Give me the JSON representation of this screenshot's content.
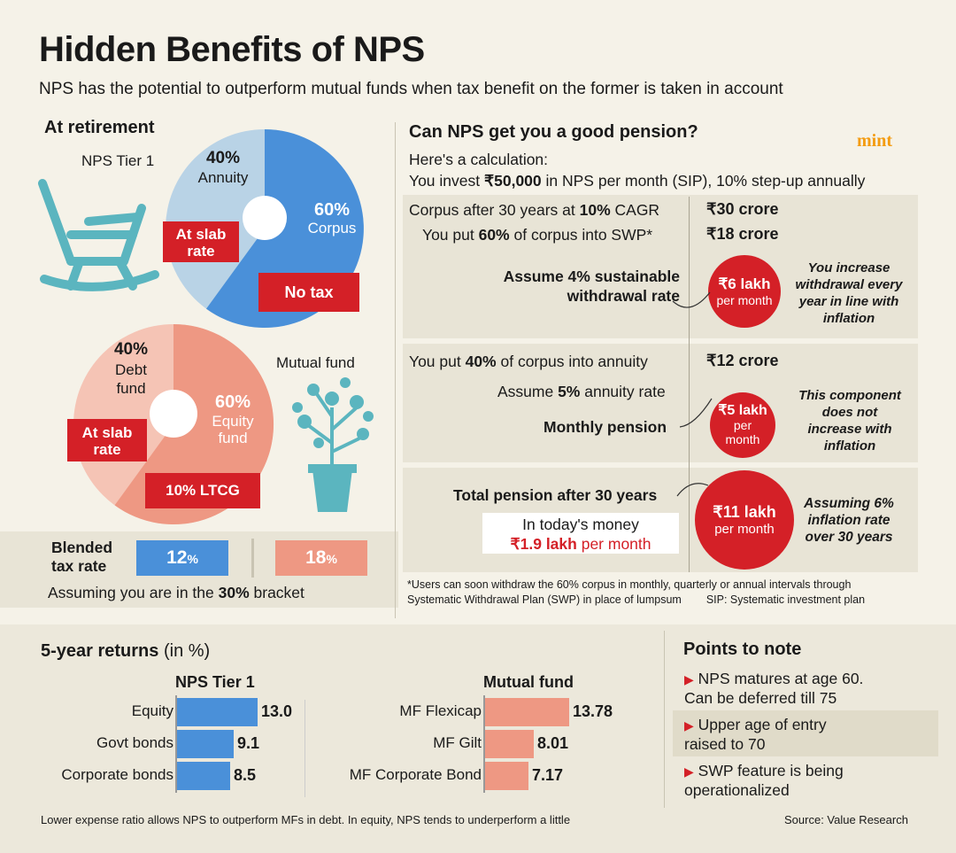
{
  "title": "Hidden Benefits of NPS",
  "subtitle": "NPS has the potential to outperform mutual funds when tax benefit on the former is taken in account",
  "brand": "mint",
  "colors": {
    "red": "#d42027",
    "blue": "#4a90d9",
    "light_blue": "#b9d3e6",
    "salmon": "#ee9883",
    "light_salmon": "#f5c4b5",
    "teal": "#5bb5bf",
    "brand": "#f39c12"
  },
  "left": {
    "heading": "At retirement",
    "nps_label": "NPS Tier 1",
    "nps_annuity_pct": "40%",
    "nps_annuity_label": "Annuity",
    "nps_corpus_pct": "60%",
    "nps_corpus_label": "Corpus",
    "nps_slab": [
      "At slab",
      "rate"
    ],
    "nps_notax": "No tax",
    "mf_label": "Mutual fund",
    "mf_debt_pct": "40%",
    "mf_debt_label": [
      "Debt",
      "fund"
    ],
    "mf_equity_pct": "60%",
    "mf_equity_label": [
      "Equity",
      "fund"
    ],
    "mf_slab": [
      "At slab",
      "rate"
    ],
    "mf_ltcg": "10% LTCG",
    "blended_label": [
      "Blended",
      "tax rate"
    ],
    "blended_nps": "12",
    "blended_mf": "18",
    "pct_sign": "%",
    "bracket_pre": "Assuming you are in the ",
    "bracket_bold": "30%",
    "bracket_post": " bracket"
  },
  "right": {
    "heading": "Can NPS get you a good pension?",
    "intro": "Here's a calculation:",
    "invest_pre": "You invest ",
    "invest_bold": "₹50,000",
    "invest_post": " in NPS per month (SIP), 10% step-up annually",
    "corpus_pre": "Corpus after 30 years at ",
    "corpus_bold": "10%",
    "corpus_post": " CAGR",
    "corpus_val": "₹30 crore",
    "swp_pre": "You put ",
    "swp_bold": "60%",
    "swp_post": " of corpus into SWP*",
    "swp_val": "₹18 crore",
    "withdraw_label": [
      "Assume 4% sustainable",
      "withdrawal rate"
    ],
    "withdraw_circle": [
      "₹6 lakh",
      "per month"
    ],
    "withdraw_note": [
      "You increase",
      "withdrawal every",
      "year in line with",
      "inflation"
    ],
    "annuity_pre": "You put ",
    "annuity_bold": "40%",
    "annuity_post": " of corpus into annuity",
    "annuity_val": "₹12 crore",
    "annuity_rate_pre": "Assume ",
    "annuity_rate_bold": "5%",
    "annuity_rate_post": " annuity rate",
    "monthly_label": "Monthly pension",
    "monthly_circle": [
      "₹5 lakh",
      "per",
      "month"
    ],
    "monthly_note": [
      "This component",
      "does not",
      "increase with",
      "inflation"
    ],
    "total_label": "Total pension after 30 years",
    "today_label": "In today's money",
    "today_bold": "₹1.9 lakh",
    "today_post": " per month",
    "total_circle": [
      "₹11 lakh",
      "per month"
    ],
    "total_note": [
      "Assuming 6%",
      "inflation rate",
      "over 30 years"
    ],
    "footnote1": "*Users can soon withdraw the 60% corpus in monthly, quarterly or annual intervals through",
    "footnote2": "Systematic Withdrawal Plan (SWP) in place of lumpsum",
    "footnote3": "SIP: Systematic investment plan"
  },
  "returns": {
    "heading": "5-year returns",
    "heading_unit": " (in %)",
    "nps_heading": "NPS Tier 1",
    "mf_heading": "Mutual fund",
    "chart_data": [
      {
        "type": "bar",
        "title": "NPS Tier 1",
        "categories": [
          "Equity",
          "Govt bonds",
          "Corporate bonds"
        ],
        "values": [
          13.0,
          9.1,
          8.5
        ],
        "labels": [
          "13.0",
          "9.1",
          "8.5"
        ]
      },
      {
        "type": "bar",
        "title": "Mutual fund",
        "categories": [
          "MF Flexicap",
          "MF Gilt",
          "MF Corporate Bond"
        ],
        "values": [
          13.78,
          8.01,
          7.17
        ],
        "labels": [
          "13.78",
          "8.01",
          "7.17"
        ]
      }
    ]
  },
  "points": {
    "heading": "Points to note",
    "items": [
      [
        "NPS matures at age 60.",
        "Can be deferred till 75"
      ],
      [
        "Upper age of entry",
        "raised to 70"
      ],
      [
        "SWP feature is being",
        "operationalized"
      ]
    ]
  },
  "bottom_note": "Lower expense ratio allows NPS to outperform MFs in debt. In equity, NPS tends to underperform a little",
  "source": "Source: Value Research"
}
